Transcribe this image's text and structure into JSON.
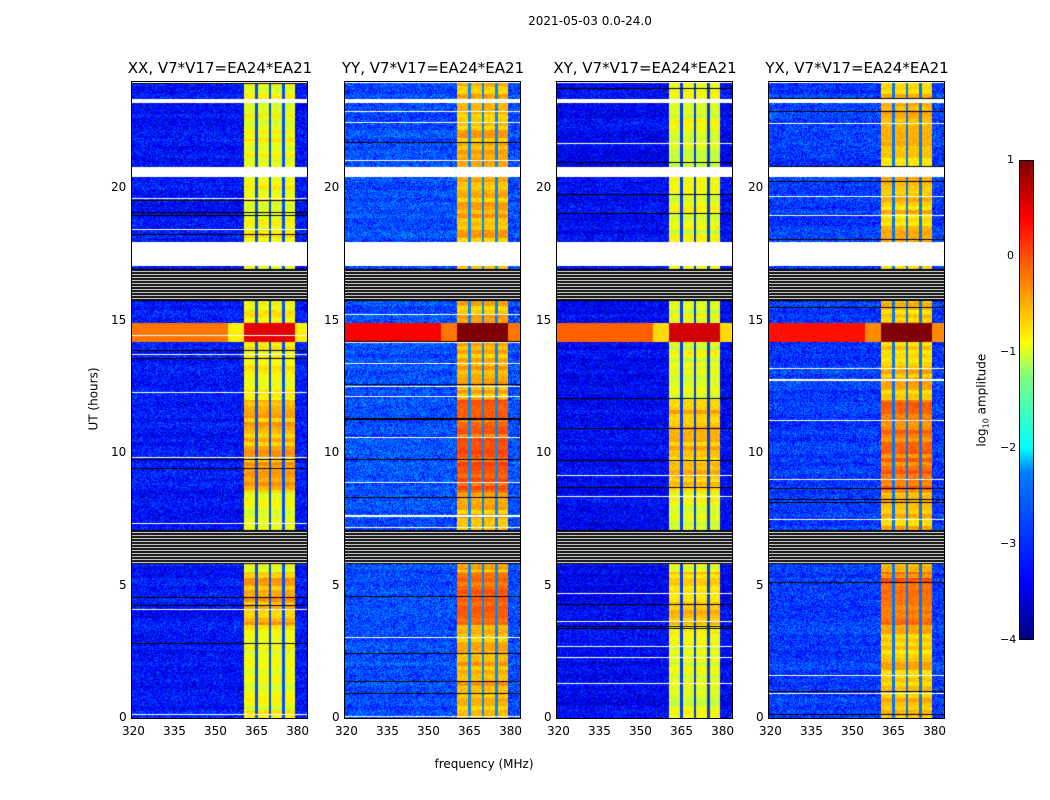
{
  "suptitle": "2021-05-03 0.0-24.0",
  "chart_data": {
    "type": "heatmap",
    "title": "2021-05-03 0.0-24.0",
    "xlabel": "frequency (MHz)",
    "ylabel": "UT (hours)",
    "xlim": [
      320,
      384
    ],
    "ylim": [
      0,
      24
    ],
    "xticks": [
      "320",
      "335",
      "350",
      "365",
      "380"
    ],
    "yticks": [
      "0",
      "5",
      "10",
      "15",
      "20"
    ],
    "colorbar": {
      "label": "log10 amplitude",
      "label_main": "log",
      "label_sub": "10",
      "label_rest": " amplitude",
      "range": [
        -4,
        1
      ],
      "ticks": [
        "1",
        "0",
        "−1",
        "−2",
        "−3",
        "−4"
      ],
      "colormap": "jet"
    },
    "panels": [
      {
        "title": "XX, V7*V17=EA24*EA21",
        "background_level": -3.3,
        "band_level": -0.9,
        "band_peak_level": 0.2
      },
      {
        "title": "YY, V7*V17=EA24*EA21",
        "background_level": -3.0,
        "band_level": -0.5,
        "band_peak_level": 0.8
      },
      {
        "title": "XY, V7*V17=EA24*EA21",
        "background_level": -3.4,
        "band_level": -1.0,
        "band_peak_level": 0.3
      },
      {
        "title": "YX, V7*V17=EA24*EA21",
        "background_level": -3.1,
        "band_level": -0.6,
        "band_peak_level": 0.7
      }
    ],
    "rfi_band_mhz": [
      361,
      379.5
    ],
    "rfi_channel_gaps_mhz": [
      365.5,
      370.5,
      375.5
    ],
    "flagged_hours": [
      [
        17.07,
        17.97
      ],
      [
        23.2,
        23.35
      ],
      [
        20.4,
        20.8
      ],
      [
        5.8,
        7.1
      ],
      [
        15.75,
        16.95
      ]
    ],
    "strong_rfi_hours": [
      14.2,
      14.9
    ]
  }
}
